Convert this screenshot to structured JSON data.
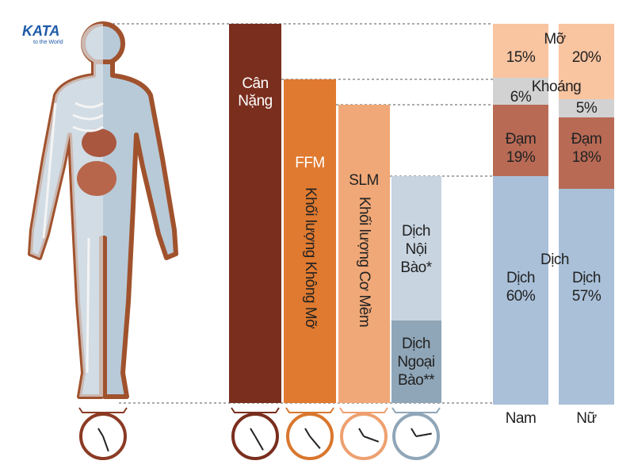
{
  "logo": {
    "name": "KATA",
    "tagline": "to the World"
  },
  "columns": [
    {
      "lines": [
        "Cân",
        "Nặng"
      ]
    },
    {
      "label": "FFM",
      "vertical": "Khối lượng Không Mỡ"
    },
    {
      "label": "SLM",
      "vertical": "Khối lượng Cơ Mềm"
    },
    {
      "upper": [
        "Dịch",
        "Nội",
        "Bào*"
      ],
      "lower": [
        "Dịch",
        "Ngoại",
        "Bào**"
      ]
    }
  ],
  "composition": {
    "fat": "Mỡ",
    "mineral": "Khoáng",
    "protein_male": "Đạm",
    "protein_female": "Đạm",
    "water": "Dịch",
    "water_male": "Dịch",
    "water_female": "Dịch",
    "male": {
      "label": "Nam",
      "fat": "15%",
      "mineral": "6%",
      "protein": "19%",
      "water": "60%"
    },
    "female": {
      "label": "Nữ",
      "fat": "20%",
      "mineral": "5%",
      "protein": "18%",
      "water": "57%"
    }
  }
}
